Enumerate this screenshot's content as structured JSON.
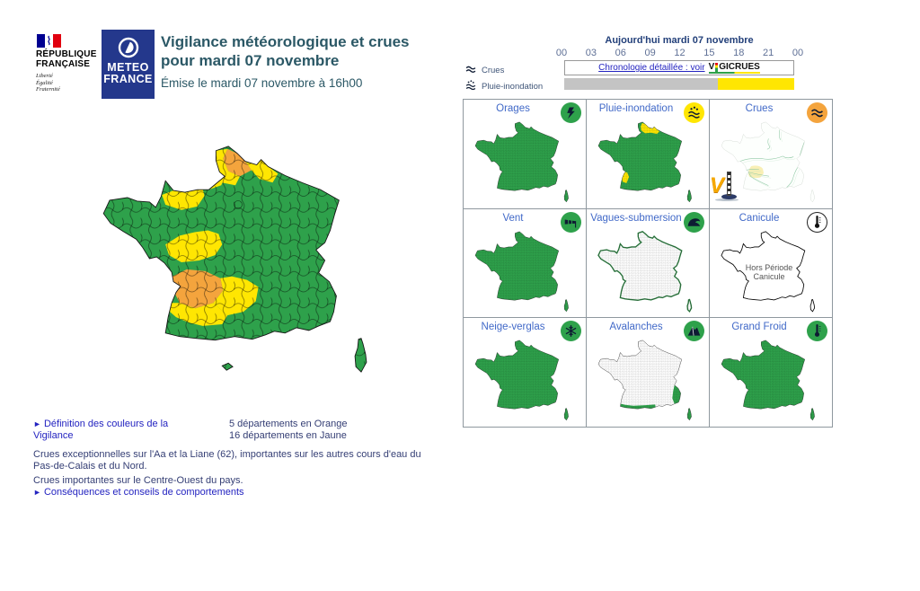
{
  "header": {
    "republique": {
      "name_line1": "RÉPUBLIQUE",
      "name_line2": "FRANÇAISE",
      "motto": [
        "Liberté",
        "Égalité",
        "Fraternité"
      ]
    },
    "meteo_france": {
      "line1": "METEO",
      "line2": "FRANCE"
    },
    "title_line1": "Vigilance météorologique et crues",
    "title_line2": "pour mardi 07 novembre",
    "subtitle": "Émise le mardi 07 novembre à 16h00"
  },
  "timeline": {
    "title": "Aujourd'hui mardi 07 novembre",
    "hours": [
      "00",
      "03",
      "06",
      "09",
      "12",
      "15",
      "18",
      "21",
      "00"
    ],
    "legend": [
      {
        "label": "Crues",
        "icon": "crues-waves-icon"
      },
      {
        "label": "Pluie-inondation",
        "icon": "rain-flood-icon"
      }
    ],
    "crues_link": "Chronologie détaillée : voir",
    "vigicrues_logo": {
      "v": "V",
      "rest": "GICRUES"
    },
    "pluie_bar": {
      "gray_color": "#C4C4C4",
      "yellow_color": "#FFE602",
      "yellow_from_percent": 66.8
    }
  },
  "panels": [
    {
      "title": "Orages",
      "slug": "orages",
      "icon": "thunderstorm-icon",
      "badge_color": "#2EA14B",
      "map": "green"
    },
    {
      "title": "Pluie-inondation",
      "slug": "pluie-inondation",
      "icon": "rain-flood-icon",
      "badge_color": "#FFE602",
      "map": "pluie"
    },
    {
      "title": "Crues",
      "slug": "crues",
      "icon": "flood-waves-icon",
      "badge_color": "#F4A43D",
      "map": "rivers"
    },
    {
      "title": "Vent",
      "slug": "vent",
      "icon": "windsock-icon",
      "badge_color": "#2EA14B",
      "map": "green"
    },
    {
      "title": "Vagues-submersion",
      "slug": "vagues-submersion",
      "icon": "wave-icon",
      "badge_color": "#2EA14B",
      "map": "coast"
    },
    {
      "title": "Canicule",
      "slug": "canicule",
      "icon": "thermometer-icon",
      "badge_color": "#FFFFFF",
      "map": "outline",
      "note": "Hors Période Canicule"
    },
    {
      "title": "Neige-verglas",
      "slug": "neige-verglas",
      "icon": "snowflake-icon",
      "badge_color": "#2EA14B",
      "map": "green"
    },
    {
      "title": "Avalanches",
      "slug": "avalanches",
      "icon": "mountain-icon",
      "badge_color": "#2EA14B",
      "map": "mountains"
    },
    {
      "title": "Grand Froid",
      "slug": "grand-froid",
      "icon": "cold-thermometer-icon",
      "badge_color": "#2EA14B",
      "map": "green"
    }
  ],
  "map_legend": {
    "orange_count": "5 départements en Orange",
    "jaune_count": "16 départements en Jaune"
  },
  "footer": {
    "definition_link": "Définition des couleurs de la Vigilance",
    "bulletin_1": "Crues exceptionnelles sur l'Aa et la Liane (62), importantes sur les autres cours d'eau du Pas-de-Calais et du Nord.",
    "bulletin_2": "Crues importantes sur le Centre-Ouest du pays.",
    "conseils_link": "Conséquences et conseils de comportements"
  },
  "colors": {
    "green": "#2EA14B",
    "yellow": "#FFE602",
    "orange": "#F4A43D",
    "meteo_france_blue": "#24388C",
    "title_teal": "#2B5866",
    "panel_title_blue": "#4169C8",
    "link_blue": "#2323C0",
    "body_navy": "#343E74"
  }
}
